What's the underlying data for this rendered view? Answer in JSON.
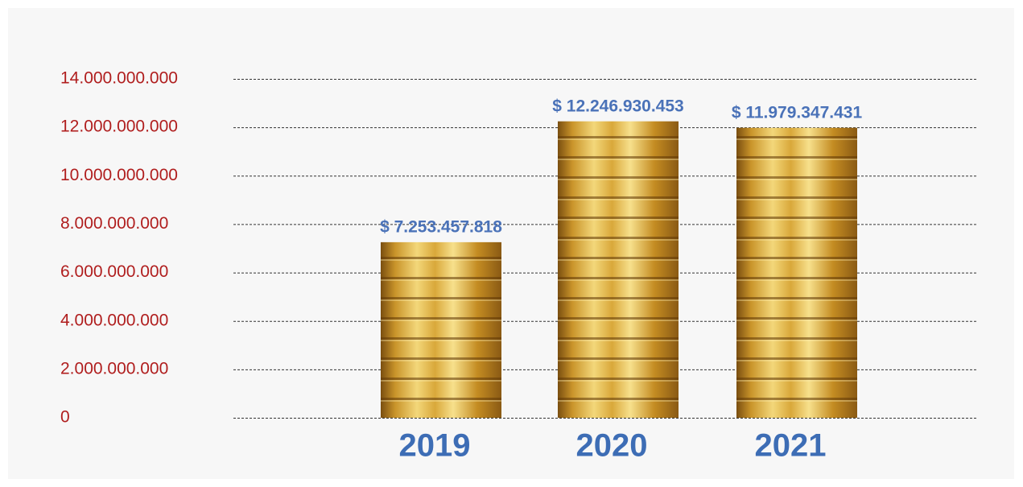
{
  "chart_data": {
    "type": "bar",
    "categories": [
      "2019",
      "2020",
      "2021"
    ],
    "values": [
      7253457818,
      12246930453,
      11979347431
    ],
    "value_labels": [
      "$ 7.253.457.818",
      "$ 12.246.930.453",
      "$ 11.979.347.431"
    ],
    "color": "#d4a72c",
    "ylim": [
      0,
      14000000000
    ],
    "yticks": [
      0,
      {
        "value": 2000000000,
        "label": "2.000.000.000"
      },
      {
        "value": 4000000000,
        "label": "4.000.000.000"
      },
      {
        "value": 6000000000,
        "label": "6.000.000.000"
      },
      {
        "value": 8000000000,
        "label": "8.000.000.000"
      },
      {
        "value": 10000000000,
        "label": "10.000.000.000"
      },
      {
        "value": 12000000000,
        "label": "12.000.000.000"
      },
      {
        "value": 14000000000,
        "label": "14.000.000.000"
      }
    ],
    "grid": true
  }
}
